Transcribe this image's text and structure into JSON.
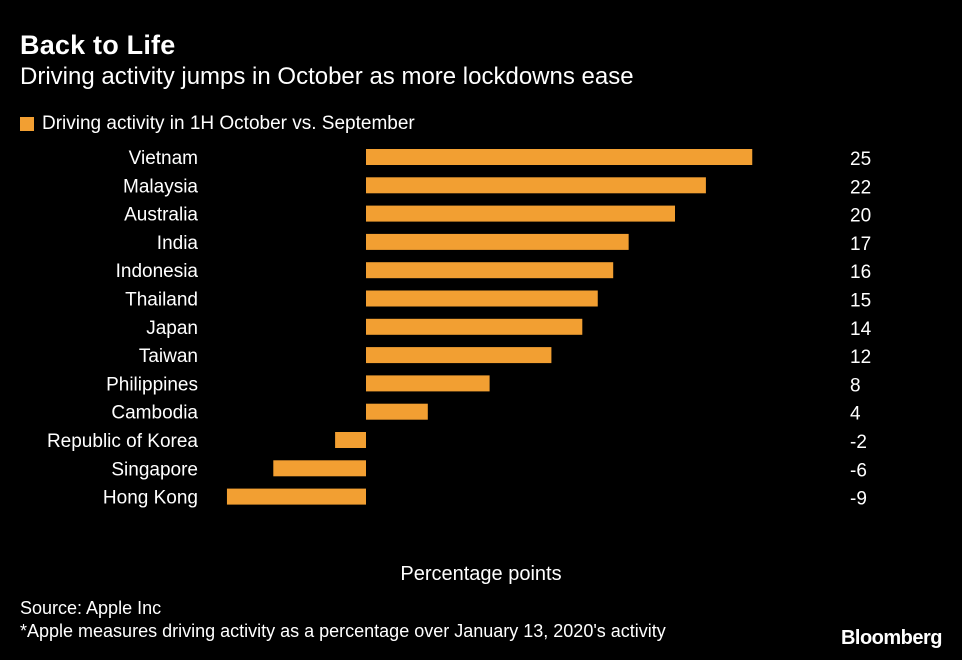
{
  "header": {
    "title": "Back to Life",
    "subtitle": "Driving activity jumps in October as more lockdowns ease"
  },
  "legend": {
    "label": "Driving activity in 1H October vs. September"
  },
  "footer": {
    "source": "Source: Apple Inc",
    "note": "*Apple measures driving activity as a percentage over January 13, 2020's activity",
    "brand": "Bloomberg"
  },
  "colors": {
    "bar": "#F29F32",
    "background": "#000000",
    "text": "#FFFFFF"
  },
  "chart_data": {
    "type": "bar",
    "orientation": "horizontal",
    "title": "Back to Life",
    "subtitle": "Driving activity jumps in October as more lockdowns ease",
    "xlabel": "Percentage points",
    "ylabel": "",
    "series": [
      {
        "name": "Driving activity in 1H October vs. September",
        "values": [
          25,
          22,
          20,
          17,
          16,
          15,
          14,
          12,
          8,
          4,
          -2,
          -6,
          -9
        ]
      }
    ],
    "categories": [
      "Vietnam",
      "Malaysia",
      "Australia",
      "India",
      "Indonesia",
      "Thailand",
      "Japan",
      "Taiwan",
      "Philippines",
      "Cambodia",
      "Republic of Korea",
      "Singapore",
      "Hong Kong"
    ],
    "value_labels": [
      "25",
      "22",
      "20",
      "17",
      "16",
      "15",
      "14",
      "12",
      "8",
      "4",
      "-2",
      "-6",
      "-9"
    ],
    "xlim": [
      -9,
      25
    ],
    "grid": false,
    "legend_position": "top-left"
  }
}
